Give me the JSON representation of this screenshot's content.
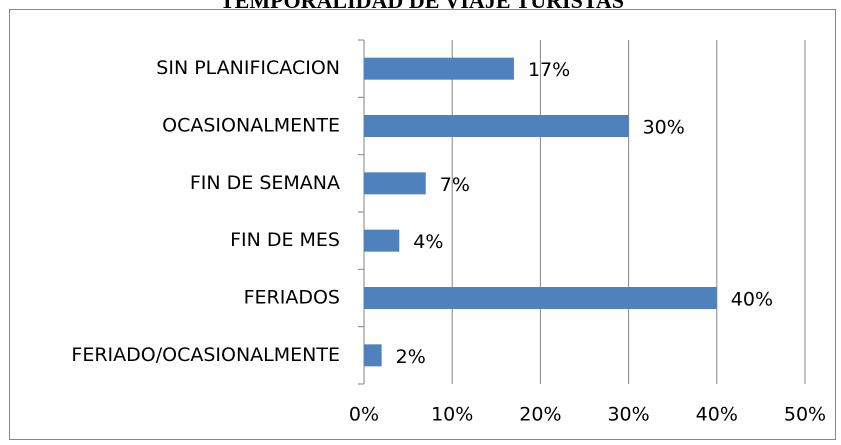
{
  "chart_data": {
    "type": "bar",
    "orientation": "horizontal",
    "title": "TEMPORALIDAD DE VIAJE TURISTAS",
    "categories": [
      "SIN PLANIFICACION",
      "OCASIONALMENTE",
      "FIN DE SEMANA",
      "FIN DE MES",
      "FERIADOS",
      "FERIADO/OCASIONALMENTE"
    ],
    "values": [
      17,
      30,
      7,
      4,
      40,
      2
    ],
    "value_labels": [
      "17%",
      "30%",
      "7%",
      "4%",
      "40%",
      "2%"
    ],
    "color": "#4f81bd",
    "xlim": [
      0,
      50
    ],
    "xticks": [
      {
        "value": 0,
        "label": "0%"
      },
      {
        "value": 10,
        "label": "10%"
      },
      {
        "value": 20,
        "label": "20%"
      },
      {
        "value": 30,
        "label": "30%"
      },
      {
        "value": 40,
        "label": "40%"
      },
      {
        "value": 50,
        "label": "50%"
      }
    ],
    "grid": true
  }
}
